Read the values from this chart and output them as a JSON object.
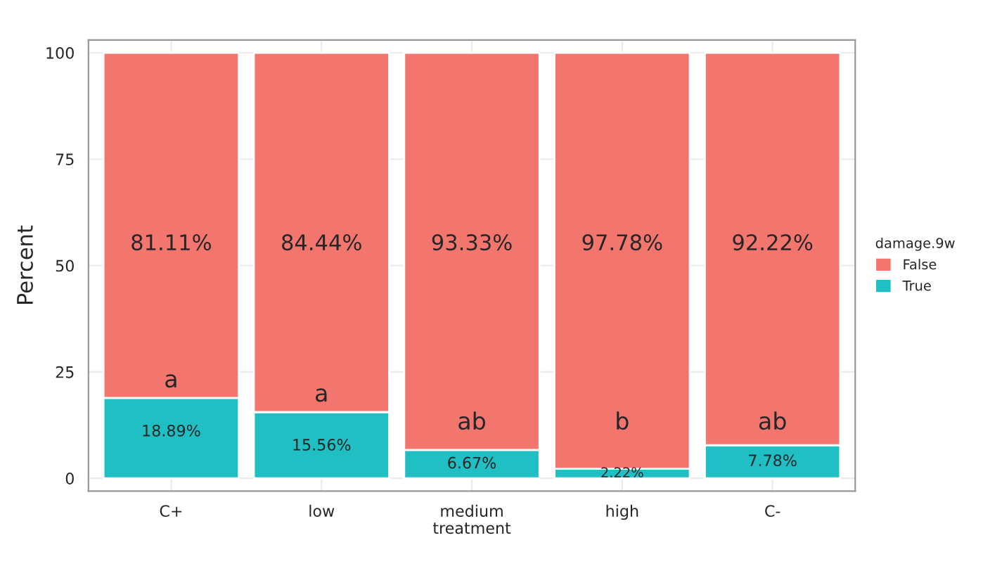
{
  "chart_data": {
    "type": "bar",
    "stacked": true,
    "xlabel": "treatment",
    "ylabel": "Percent",
    "legend_title": "damage.9w",
    "legend": "right",
    "grid": true,
    "categories": [
      "C+",
      "low",
      "medium",
      "high",
      "C-"
    ],
    "series": [
      {
        "name": "True",
        "color": "#1fbfc4",
        "values": [
          18.89,
          15.56,
          6.67,
          2.22,
          7.78
        ],
        "value_labels": [
          "18.89%",
          "15.56%",
          "6.67%",
          "2.22%",
          "7.78%"
        ]
      },
      {
        "name": "False",
        "color": "#f3766e",
        "values": [
          81.11,
          84.44,
          93.33,
          97.78,
          92.22
        ],
        "value_labels": [
          "81.11%",
          "84.44%",
          "93.33%",
          "97.78%",
          "92.22%"
        ]
      }
    ],
    "ylim": [
      -3,
      103
    ],
    "yticks": [
      0,
      25,
      50,
      75,
      100
    ],
    "annotations": [
      "a",
      "a",
      "ab",
      "b",
      "ab"
    ]
  }
}
